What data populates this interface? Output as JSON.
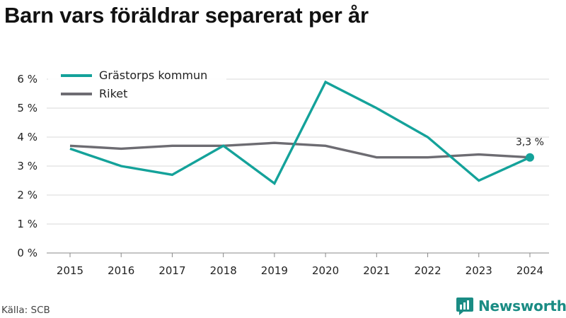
{
  "title": "Barn vars föräldrar separerat per år",
  "source": "Källa: SCB",
  "brand": {
    "name": "Newsworthy",
    "icon": "newsworthy-logo-icon"
  },
  "colors": {
    "primary": "#14a29a",
    "secondary": "#6d6c72",
    "grid": "#d9d9d9",
    "brand": "#1a8c84"
  },
  "chart_data": {
    "type": "line",
    "x": [
      "2015",
      "2016",
      "2017",
      "2018",
      "2019",
      "2020",
      "2021",
      "2022",
      "2023",
      "2024"
    ],
    "series": [
      {
        "name": "Grästorps kommun",
        "color": "#14a29a",
        "values": [
          3.6,
          3.0,
          2.7,
          3.7,
          2.4,
          5.9,
          5.0,
          4.0,
          2.5,
          3.3
        ]
      },
      {
        "name": "Riket",
        "color": "#6d6c72",
        "values": [
          3.7,
          3.6,
          3.7,
          3.7,
          3.8,
          3.7,
          3.3,
          3.3,
          3.4,
          3.3
        ]
      }
    ],
    "yticks": [
      "0 %",
      "1 %",
      "2 %",
      "3 %",
      "4 %",
      "5 %",
      "6 %"
    ],
    "ylim": [
      0,
      6
    ],
    "grid": true,
    "legend_position": "top-left",
    "annotation": {
      "series": 0,
      "index": 9,
      "label": "3,3 %"
    }
  }
}
